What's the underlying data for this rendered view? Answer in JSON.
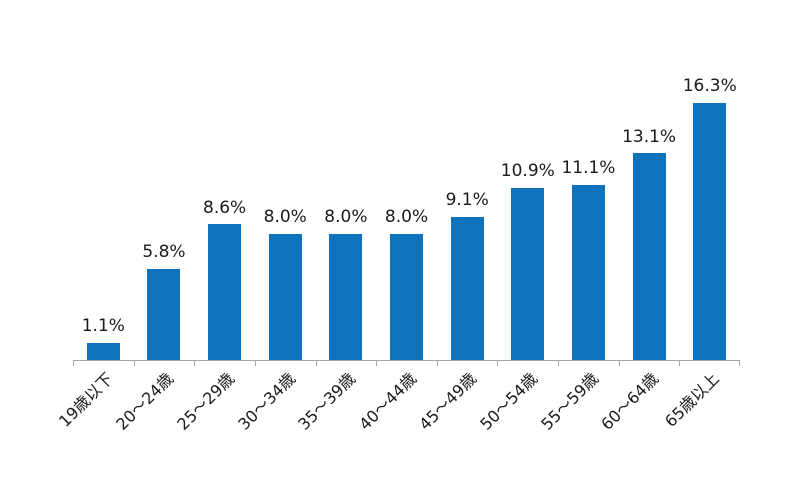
{
  "chart_data": {
    "type": "bar",
    "title": "",
    "xlabel": "",
    "ylabel": "",
    "categories": [
      "19歳以下",
      "20〜24歳",
      "25〜29歳",
      "30〜34歳",
      "35〜39歳",
      "40〜44歳",
      "45〜49歳",
      "50〜54歳",
      "55〜59歳",
      "60〜64歳",
      "65歳以上"
    ],
    "values": [
      1.1,
      5.8,
      8.6,
      8.0,
      8.0,
      8.0,
      9.1,
      10.9,
      11.1,
      13.1,
      16.3
    ],
    "value_labels": [
      "1.1%",
      "5.8%",
      "8.6%",
      "8.0%",
      "8.0%",
      "8.0%",
      "9.1%",
      "10.9%",
      "11.1%",
      "13.1%",
      "16.3%"
    ],
    "unit": "%",
    "y_axis_visible": false,
    "grid": false,
    "legend": false,
    "data_labels_position": "above-bars",
    "x_label_rotation_deg": 45
  },
  "colors": {
    "bar": "#0e72bc",
    "axis": "#a6a6a6",
    "label_text": "#1a1a1a",
    "background": "#ffffff"
  }
}
